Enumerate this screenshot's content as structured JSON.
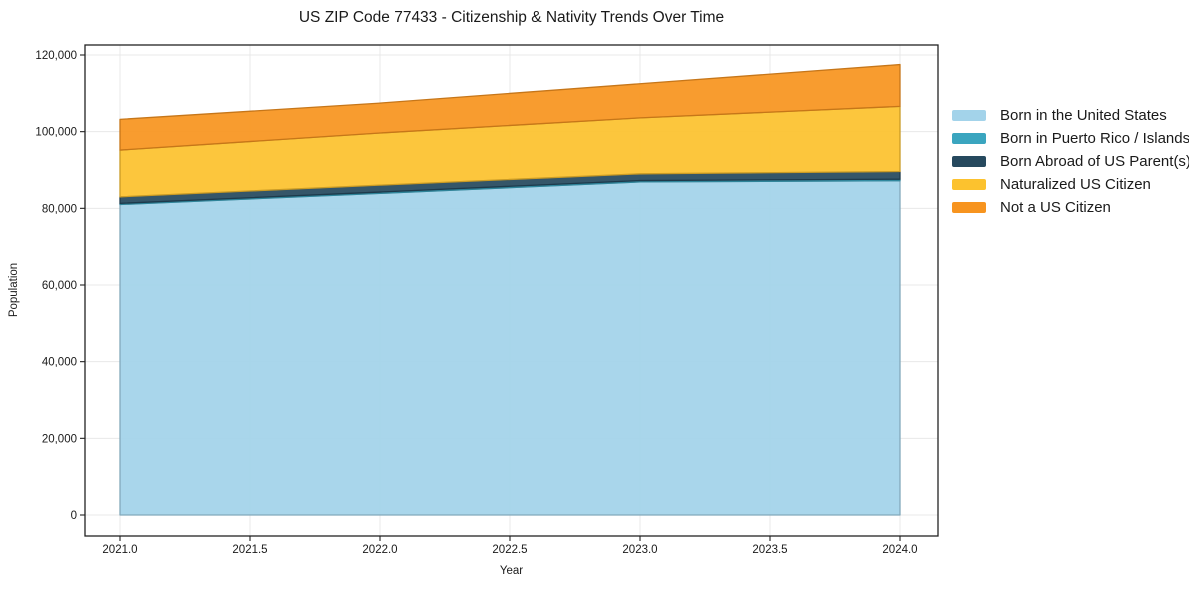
{
  "title": "US ZIP Code 77433 - Citizenship & Nativity Trends Over Time",
  "chart_data": {
    "type": "area",
    "stacked": true,
    "title": "US ZIP Code 77433 - Citizenship & Nativity Trends Over Time",
    "xlabel": "Year",
    "ylabel": "Population",
    "x": [
      2021,
      2022,
      2023,
      2024
    ],
    "xlim": [
      2020.85,
      2024.15
    ],
    "ylim": [
      0,
      122000
    ],
    "xticks": [
      2021.0,
      2021.5,
      2022.0,
      2022.5,
      2023.0,
      2023.5,
      2024.0
    ],
    "xtick_labels": [
      "2021.0",
      "2021.5",
      "2022.0",
      "2022.5",
      "2023.0",
      "2023.5",
      "2024.0"
    ],
    "yticks": [
      0,
      20000,
      40000,
      60000,
      80000,
      100000,
      120000
    ],
    "ytick_labels": [
      "0",
      "20,000",
      "40,000",
      "60,000",
      "80,000",
      "100,000",
      "120,000"
    ],
    "grid": true,
    "legend_position": "right",
    "series": [
      {
        "name": "Born in the United States",
        "color": "#a3d3ea",
        "values": [
          81000,
          83900,
          86900,
          87200
        ]
      },
      {
        "name": "Born in Puerto Rico / Islands",
        "color": "#3aa5bf",
        "values": [
          300,
          350,
          350,
          400
        ]
      },
      {
        "name": "Born Abroad of US Parent(s)",
        "color": "#26495e",
        "values": [
          1700,
          1800,
          1750,
          2000
        ]
      },
      {
        "name": "Naturalized US Citizen",
        "color": "#fcc22e",
        "values": [
          12200,
          13600,
          14600,
          17000
        ]
      },
      {
        "name": "Not a US Citizen",
        "color": "#f7941f",
        "values": [
          8000,
          7800,
          8900,
          10900
        ]
      }
    ],
    "totals": [
      103200,
      107450,
      112500,
      117500
    ]
  },
  "style": {
    "grid_color": "#e8e8e8",
    "spine_color": "#222222",
    "text_color": "#1a1a1a",
    "fill_opacity": 0.93
  }
}
